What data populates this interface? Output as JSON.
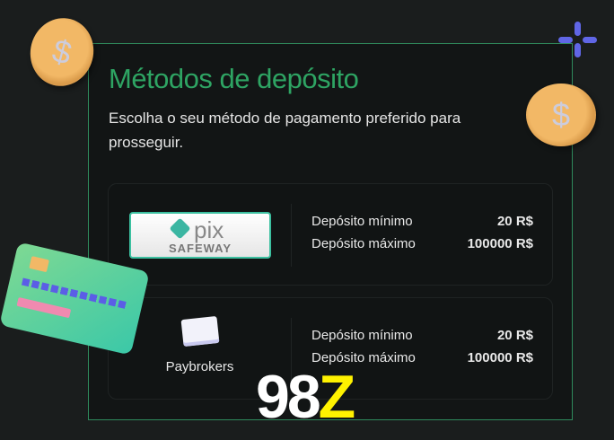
{
  "header": {
    "title": "Métodos de depósito",
    "subtitle": "Escolha o seu método de pagamento preferido para prosseguir."
  },
  "methods": [
    {
      "name": "Pix Safeway",
      "logo_text": "pix",
      "logo_sub": "SAFEWAY",
      "min_label": "Depósito mínimo",
      "min_value": "20 R$",
      "max_label": "Depósito máximo",
      "max_value": "100000 R$"
    },
    {
      "name": "Paybrokers",
      "min_label": "Depósito mínimo",
      "min_value": "20 R$",
      "max_label": "Depósito máximo",
      "max_value": "100000 R$"
    }
  ],
  "brand": {
    "part1": "98",
    "part2": "Z"
  },
  "colors": {
    "accent": "#2ea463",
    "border": "#2f8a5c",
    "brand_yellow": "#fff200",
    "background": "#1a1d1d"
  },
  "icons": [
    "coin-icon",
    "sparkle-icon",
    "credit-card-icon"
  ]
}
